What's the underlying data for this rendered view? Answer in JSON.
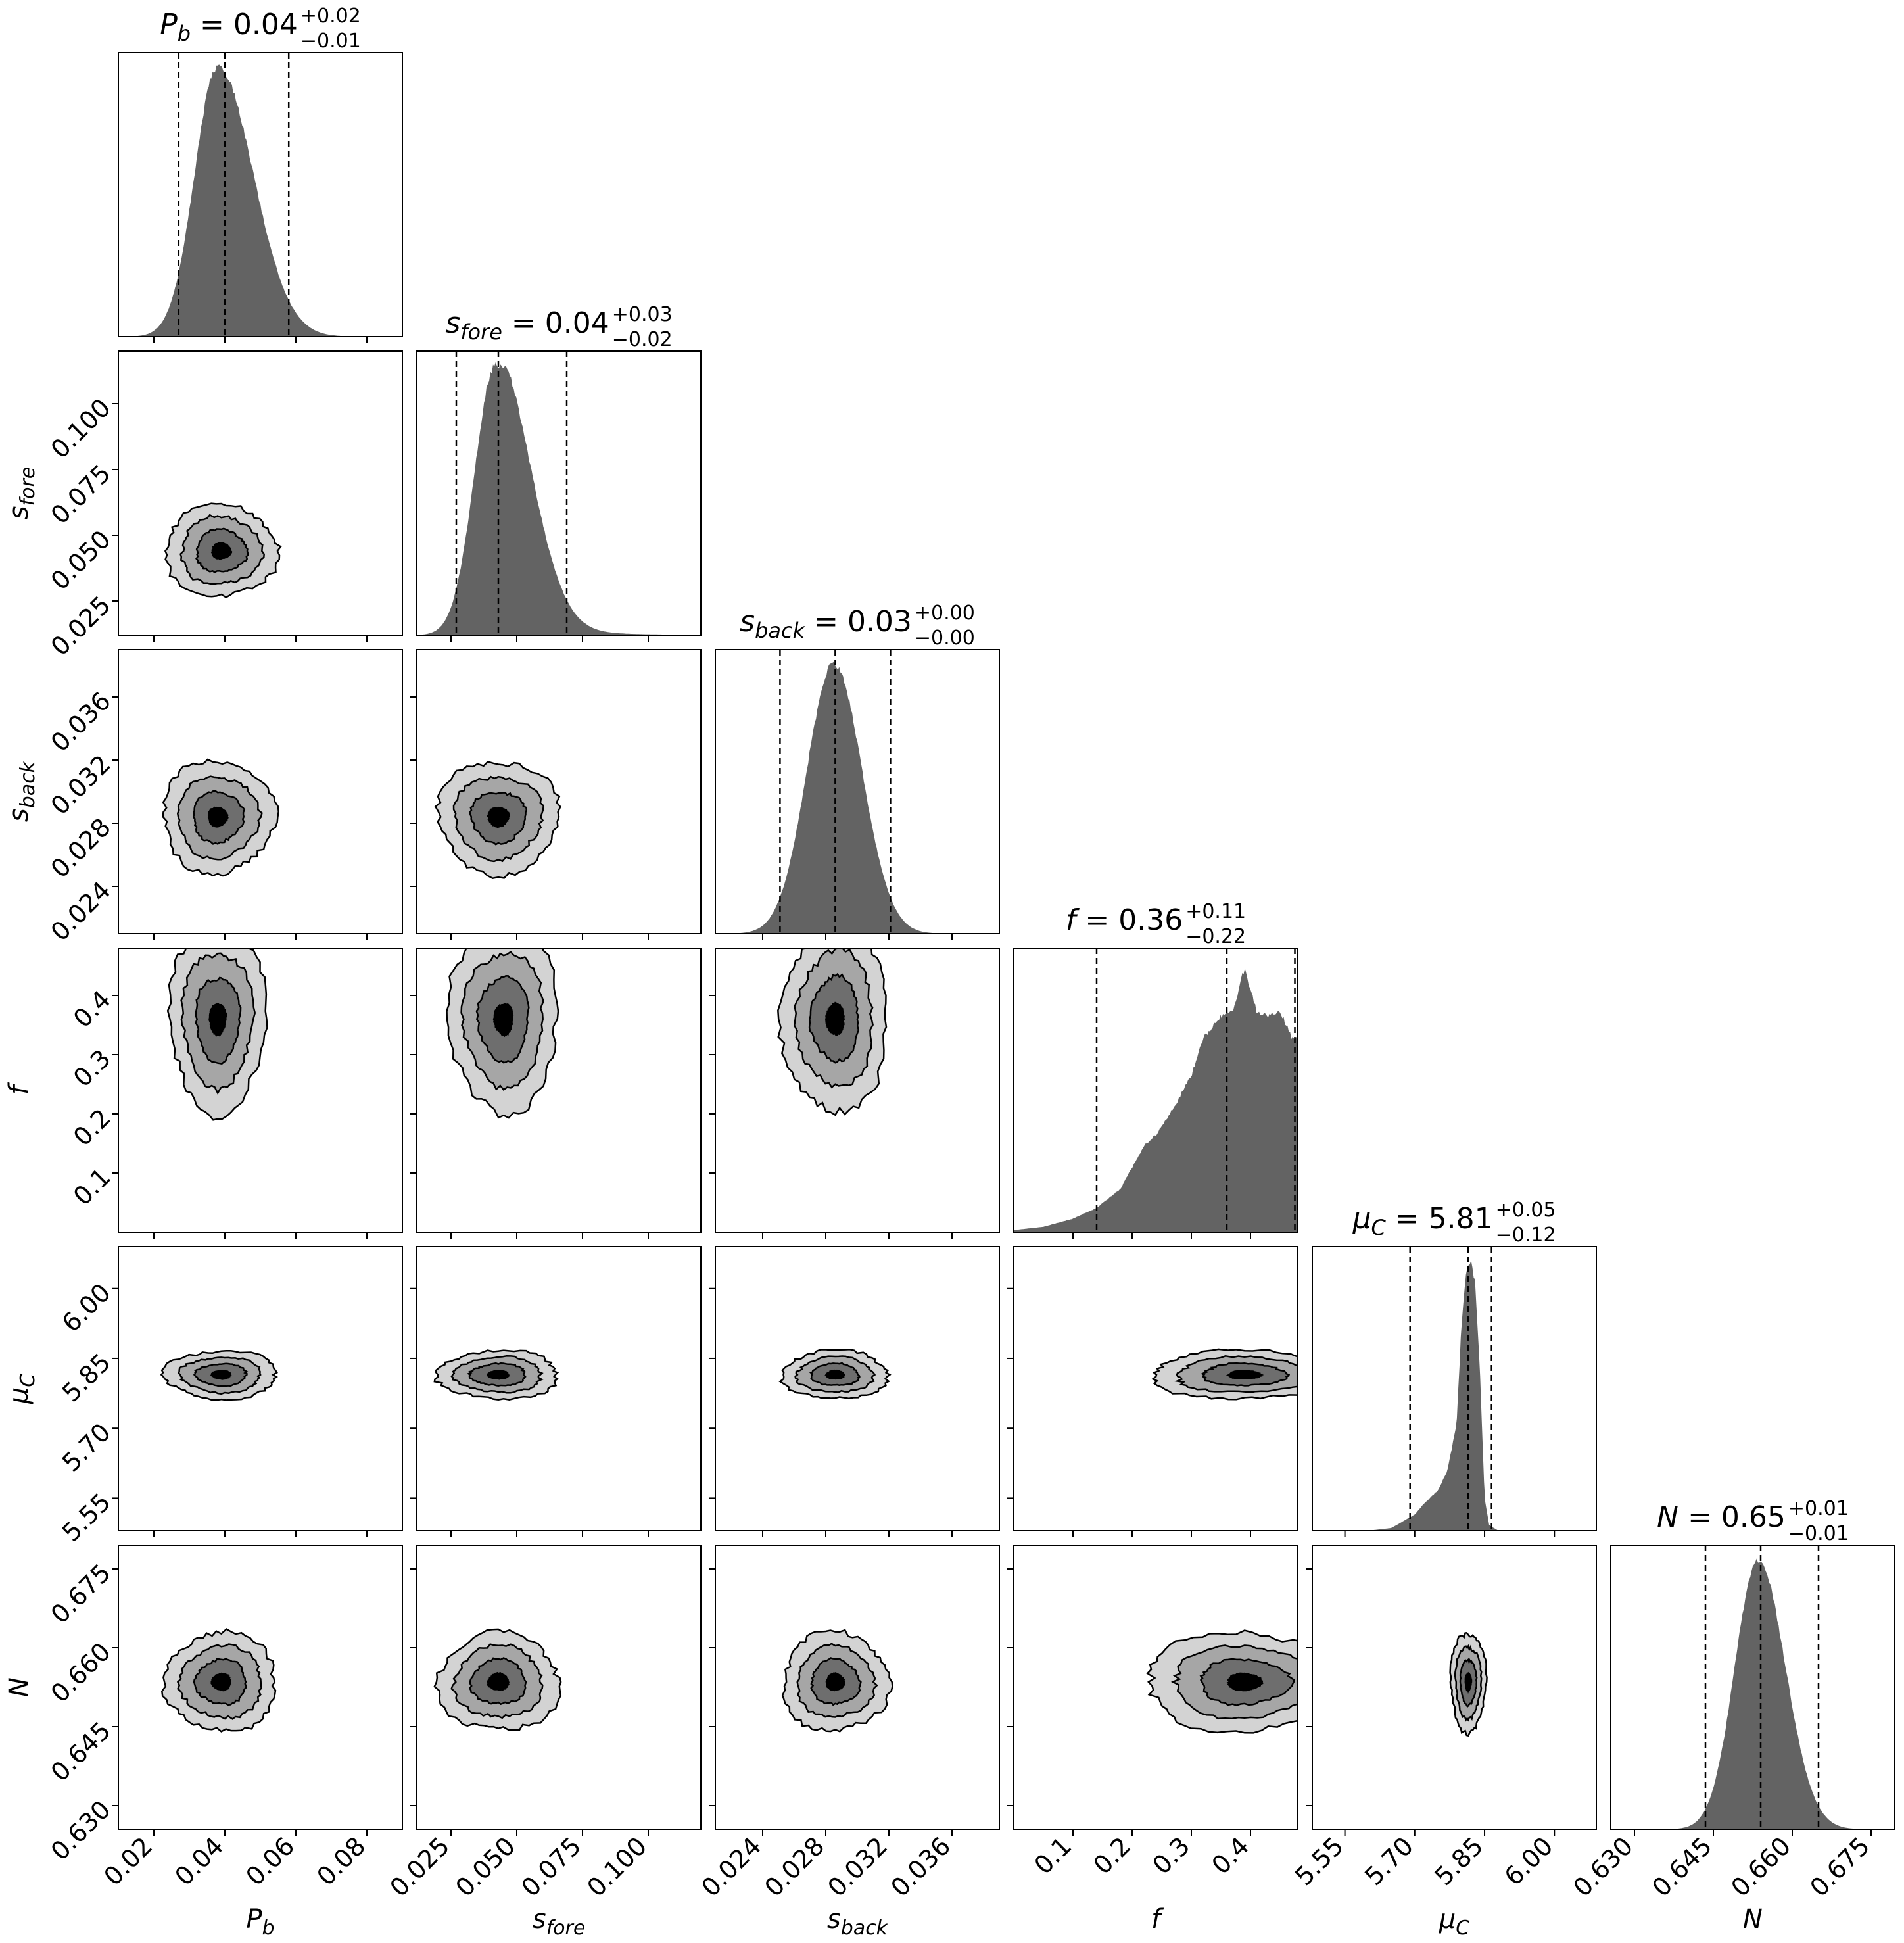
{
  "chart_data": {
    "type": "corner",
    "params": [
      {
        "key": "Pb",
        "sym": "P",
        "sub": "b",
        "axis_label": "P_b",
        "range": [
          0.01,
          0.09
        ],
        "ticks": [
          0.02,
          0.04,
          0.06,
          0.08
        ],
        "tick_labels": [
          "0.02",
          "0.04",
          "0.06",
          "0.08"
        ],
        "median": 0.04,
        "lo": 0.027,
        "hi": 0.058,
        "title": {
          "value": "0.04",
          "plus": "+0.02",
          "minus": "−0.01"
        },
        "hist": {
          "shape": "skewnorm",
          "peak": 0.038,
          "sl": 0.0065,
          "sr": 0.01
        }
      },
      {
        "key": "sfore",
        "sym": "s",
        "sub": "fore",
        "axis_label": "s_fore",
        "range": [
          0.012,
          0.12
        ],
        "ticks": [
          0.025,
          0.05,
          0.075,
          0.1
        ],
        "tick_labels": [
          "0.025",
          "0.050",
          "0.075",
          "0.100"
        ],
        "median": 0.043,
        "lo": 0.027,
        "hi": 0.069,
        "title": {
          "value": "0.04",
          "plus": "+0.03",
          "minus": "−0.02"
        },
        "hist": {
          "shape": "skewnorm",
          "peak": 0.042,
          "sl": 0.008,
          "sr": 0.013,
          "tail": 0.02
        }
      },
      {
        "key": "sback",
        "sym": "s",
        "sub": "back",
        "axis_label": "s_back",
        "range": [
          0.021,
          0.039
        ],
        "ticks": [
          0.024,
          0.028,
          0.032,
          0.036
        ],
        "tick_labels": [
          "0.024",
          "0.028",
          "0.032",
          "0.036"
        ],
        "median": 0.0286,
        "lo": 0.0251,
        "hi": 0.0321,
        "title": {
          "value": "0.03",
          "plus": "+0.00",
          "minus": "−0.00"
        },
        "hist": {
          "shape": "skewnorm",
          "peak": 0.0285,
          "sl": 0.0017,
          "sr": 0.0018
        }
      },
      {
        "key": "f",
        "sym": "f",
        "sub": "",
        "axis_label": "f",
        "range": [
          0.0,
          0.48
        ],
        "ticks": [
          0.1,
          0.2,
          0.3,
          0.4
        ],
        "tick_labels": [
          "0.1",
          "0.2",
          "0.3",
          "0.4"
        ],
        "median": 0.36,
        "lo": 0.14,
        "hi": 0.475,
        "title": {
          "value": "0.36",
          "plus": "+0.11",
          "minus": "−0.22"
        },
        "hist": {
          "shape": "points",
          "points": [
            [
              0.0,
              0.008
            ],
            [
              0.05,
              0.02
            ],
            [
              0.1,
              0.05
            ],
            [
              0.14,
              0.09
            ],
            [
              0.18,
              0.16
            ],
            [
              0.2,
              0.24
            ],
            [
              0.22,
              0.32
            ],
            [
              0.24,
              0.36
            ],
            [
              0.27,
              0.46
            ],
            [
              0.3,
              0.58
            ],
            [
              0.32,
              0.72
            ],
            [
              0.35,
              0.8
            ],
            [
              0.37,
              0.82
            ],
            [
              0.39,
              0.98
            ],
            [
              0.41,
              0.82
            ],
            [
              0.43,
              0.8
            ],
            [
              0.45,
              0.82
            ],
            [
              0.47,
              0.72
            ],
            [
              0.48,
              0.72
            ]
          ]
        }
      },
      {
        "key": "muC",
        "sym": "μ",
        "sub": "C",
        "axis_label": "μ_C",
        "range": [
          5.48,
          6.09
        ],
        "ticks": [
          5.55,
          5.7,
          5.85,
          6.0
        ],
        "tick_labels": [
          "5.55",
          "5.70",
          "5.85",
          "6.00"
        ],
        "median": 5.815,
        "lo": 5.69,
        "hi": 5.865,
        "title": {
          "value": "5.81",
          "plus": "+0.05",
          "minus": "−0.12"
        },
        "hist": {
          "shape": "points",
          "points": [
            [
              5.6,
              0.0
            ],
            [
              5.65,
              0.01
            ],
            [
              5.68,
              0.04
            ],
            [
              5.7,
              0.06
            ],
            [
              5.72,
              0.1
            ],
            [
              5.75,
              0.15
            ],
            [
              5.77,
              0.22
            ],
            [
              5.79,
              0.4
            ],
            [
              5.8,
              0.75
            ],
            [
              5.81,
              0.96
            ],
            [
              5.82,
              1.0
            ],
            [
              5.83,
              0.92
            ],
            [
              5.84,
              0.6
            ],
            [
              5.85,
              0.12
            ],
            [
              5.86,
              0.02
            ],
            [
              5.88,
              0.0
            ]
          ]
        }
      },
      {
        "key": "N",
        "sym": "N",
        "sub": "",
        "axis_label": "N",
        "range": [
          0.6255,
          0.6795
        ],
        "ticks": [
          0.63,
          0.645,
          0.66,
          0.675
        ],
        "tick_labels": [
          "0.630",
          "0.645",
          "0.660",
          "0.675"
        ],
        "median": 0.654,
        "lo": 0.6435,
        "hi": 0.665,
        "title": {
          "value": "0.65",
          "plus": "+0.01",
          "minus": "−0.01"
        },
        "hist": {
          "shape": "skewnorm",
          "peak": 0.6535,
          "sl": 0.0044,
          "sr": 0.0052
        }
      }
    ],
    "pairs": [
      {
        "row": 1,
        "col": 0,
        "cx": 0.039,
        "cy": 0.044,
        "sx": 0.0075,
        "sy": 0.0085
      },
      {
        "row": 2,
        "col": 0,
        "cx": 0.038,
        "cy": 0.0284,
        "sx": 0.0075,
        "sy": 0.0017
      },
      {
        "row": 2,
        "col": 1,
        "cx": 0.043,
        "cy": 0.0284,
        "sx": 0.011,
        "sy": 0.0017
      },
      {
        "row": 3,
        "col": 0,
        "cx": 0.038,
        "cy": 0.36,
        "sx": 0.0065,
        "sy": 0.075,
        "clip": "top"
      },
      {
        "row": 3,
        "col": 1,
        "cx": 0.045,
        "cy": 0.36,
        "sx": 0.01,
        "sy": 0.075,
        "clip": "top"
      },
      {
        "row": 3,
        "col": 2,
        "cx": 0.0286,
        "cy": 0.36,
        "sx": 0.0016,
        "sy": 0.075,
        "clip": "top"
      },
      {
        "row": 4,
        "col": 0,
        "cx": 0.039,
        "cy": 5.815,
        "sx": 0.0075,
        "sy": 0.025
      },
      {
        "row": 4,
        "col": 1,
        "cx": 0.043,
        "cy": 5.815,
        "sx": 0.011,
        "sy": 0.025
      },
      {
        "row": 4,
        "col": 2,
        "cx": 0.0286,
        "cy": 5.815,
        "sx": 0.0016,
        "sy": 0.025
      },
      {
        "row": 4,
        "col": 3,
        "cx": 0.39,
        "cy": 5.815,
        "sx": 0.075,
        "sy": 0.025,
        "clip": "right"
      },
      {
        "row": 5,
        "col": 0,
        "cx": 0.039,
        "cy": 0.6535,
        "sx": 0.0075,
        "sy": 0.0045
      },
      {
        "row": 5,
        "col": 1,
        "cx": 0.043,
        "cy": 0.6535,
        "sx": 0.011,
        "sy": 0.0045
      },
      {
        "row": 5,
        "col": 2,
        "cx": 0.0286,
        "cy": 0.6535,
        "sx": 0.0016,
        "sy": 0.0045
      },
      {
        "row": 5,
        "col": 3,
        "cx": 0.39,
        "cy": 0.6535,
        "sx": 0.08,
        "sy": 0.0045,
        "clip": "right"
      },
      {
        "row": 5,
        "col": 4,
        "cx": 5.815,
        "cy": 0.6535,
        "sx": 0.018,
        "sy": 0.0045
      }
    ],
    "contour_levels": [
      0.4,
      1.0,
      1.6,
      2.2
    ],
    "contour_fills": [
      "#d3d3d3",
      "#a6a6a6",
      "#6e6e6e",
      "#000000"
    ],
    "hist_color": "#636363",
    "grid": false,
    "legend": "none"
  }
}
